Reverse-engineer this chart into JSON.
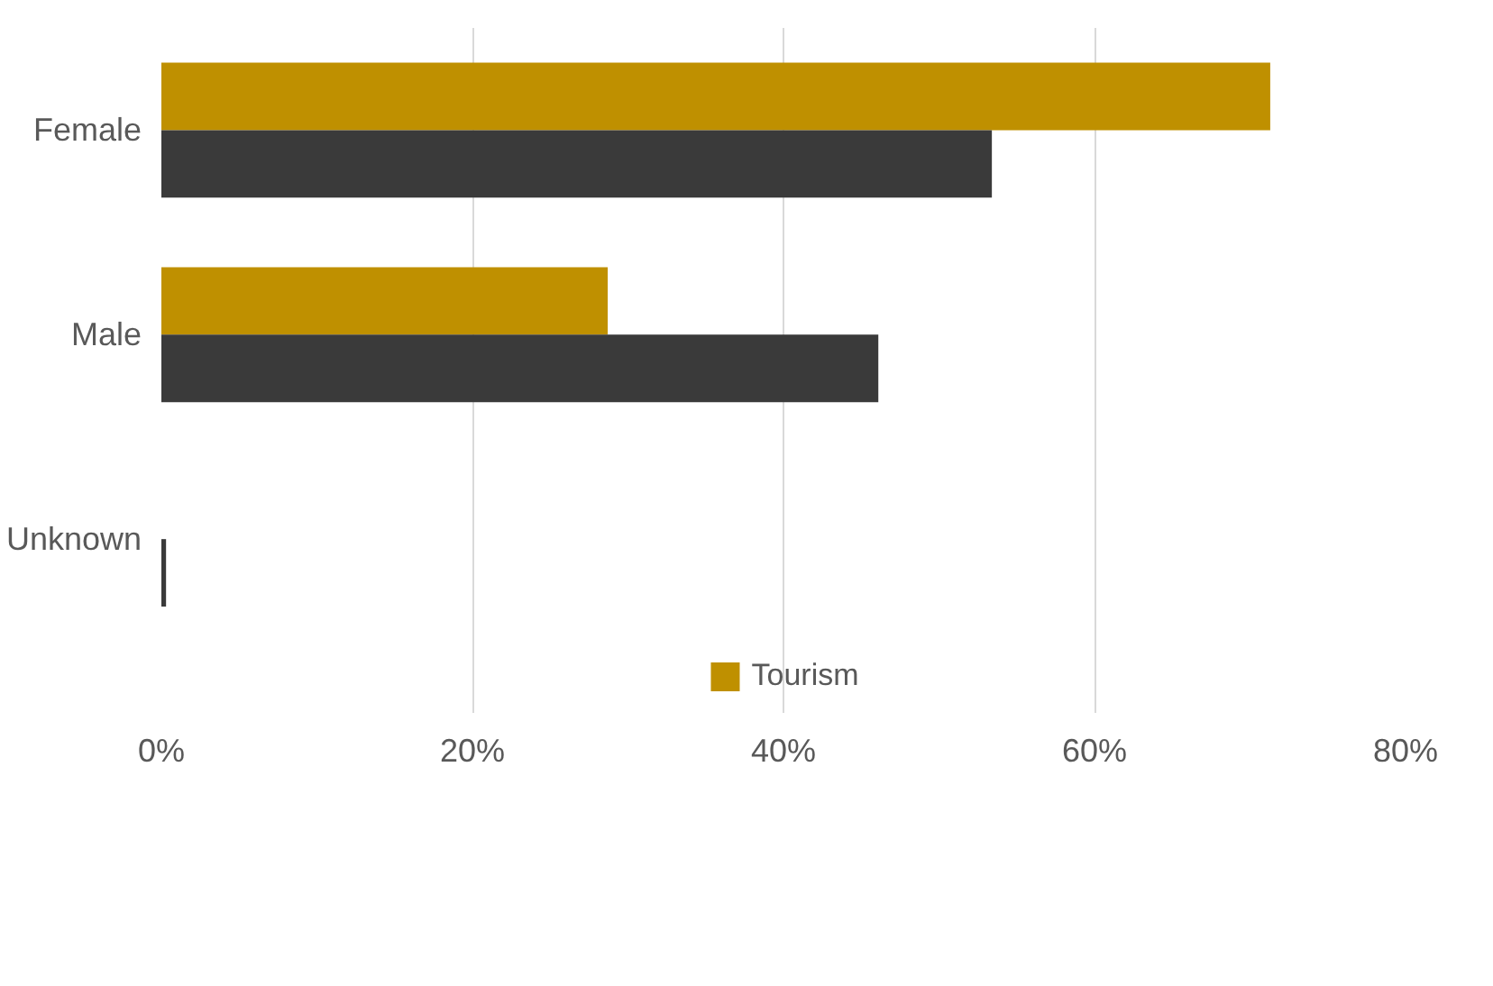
{
  "chart_data": {
    "type": "bar",
    "orientation": "horizontal",
    "categories": [
      "Female",
      "Male",
      "Unknown"
    ],
    "series": [
      {
        "name": "Tourism",
        "color": "#bf9000",
        "values": [
          71.3,
          28.7,
          0
        ]
      },
      {
        "color": "#3a3a3a",
        "values": [
          53.4,
          46.1,
          0.3
        ]
      }
    ],
    "xlim": [
      0,
      80
    ],
    "xticks": [
      {
        "value": 0,
        "label": "0%"
      },
      {
        "value": 20,
        "label": "20%"
      },
      {
        "value": 40,
        "label": "40%"
      },
      {
        "value": 60,
        "label": "60%"
      },
      {
        "value": 80,
        "label": "80%"
      }
    ],
    "grid": "x",
    "legend": "bottom"
  }
}
